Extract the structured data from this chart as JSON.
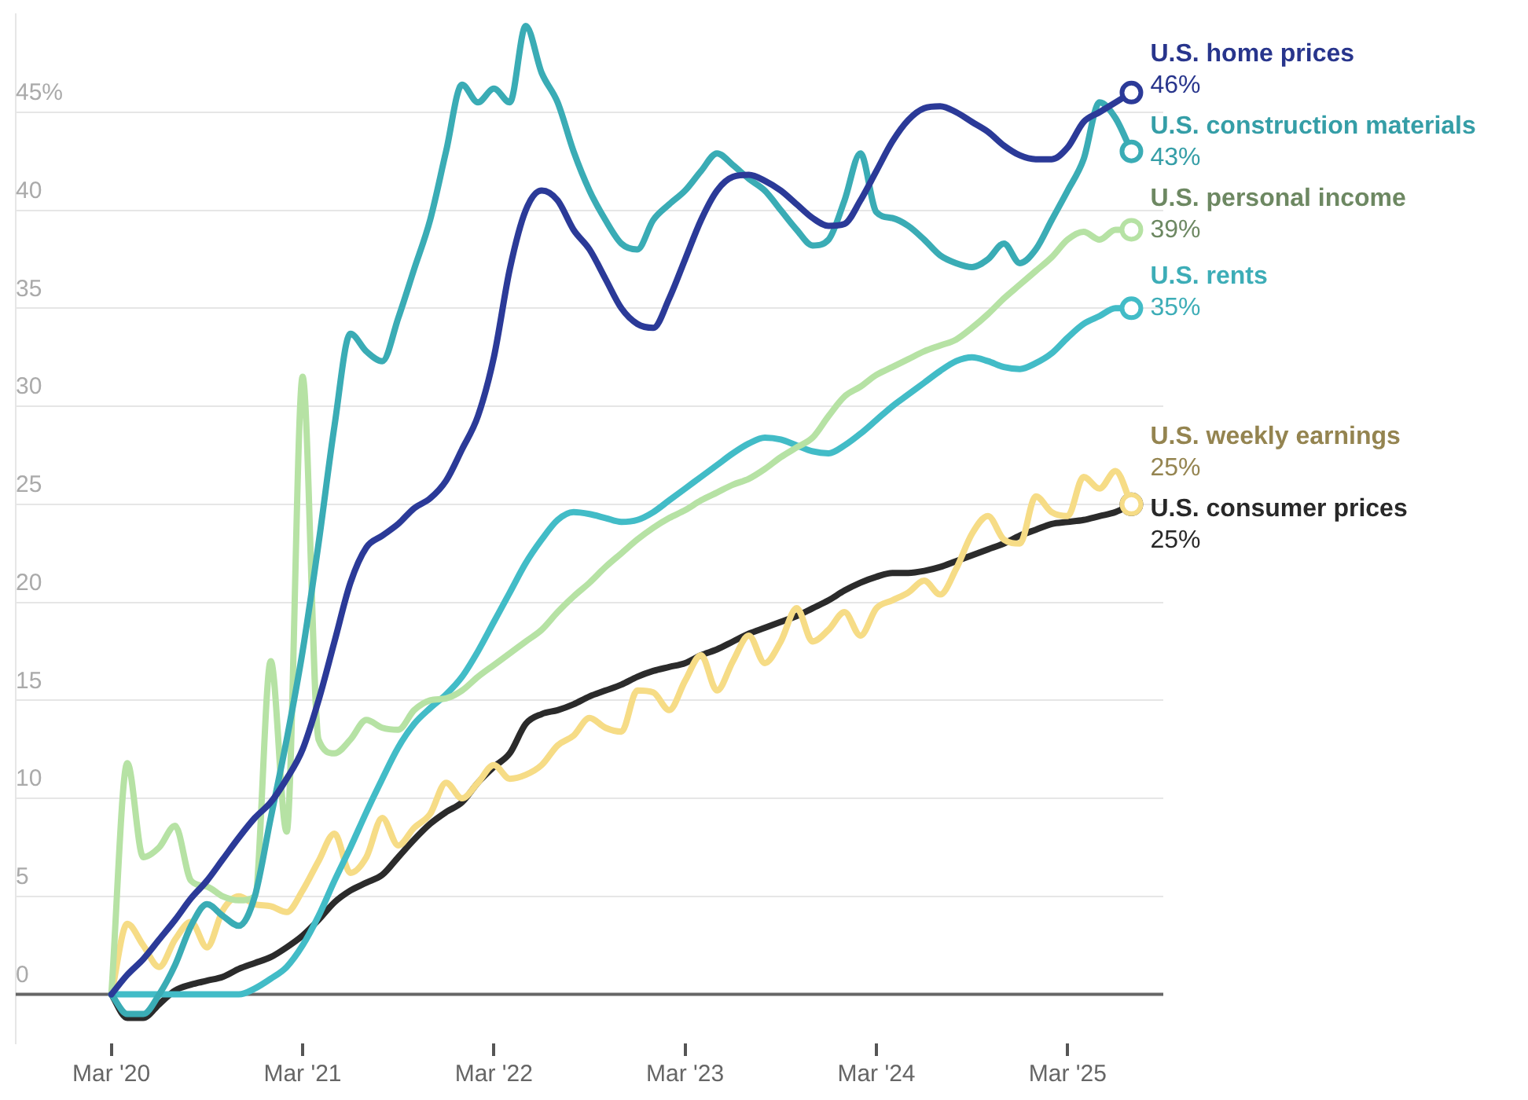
{
  "chart_data": {
    "type": "line",
    "x": [
      "2020-03",
      "2020-04",
      "2020-05",
      "2020-06",
      "2020-07",
      "2020-08",
      "2020-09",
      "2020-10",
      "2020-11",
      "2020-12",
      "2021-01",
      "2021-02",
      "2021-03",
      "2021-04",
      "2021-05",
      "2021-06",
      "2021-07",
      "2021-08",
      "2021-09",
      "2021-10",
      "2021-11",
      "2021-12",
      "2022-01",
      "2022-02",
      "2022-03",
      "2022-04",
      "2022-05",
      "2022-06",
      "2022-07",
      "2022-08",
      "2022-09",
      "2022-10",
      "2022-11",
      "2022-12",
      "2023-01",
      "2023-02",
      "2023-03",
      "2023-04",
      "2023-05",
      "2023-06",
      "2023-07",
      "2023-08",
      "2023-09",
      "2023-10",
      "2023-11",
      "2023-12",
      "2024-01",
      "2024-02",
      "2024-03",
      "2024-04",
      "2024-05",
      "2024-06",
      "2024-07",
      "2024-08",
      "2024-09",
      "2024-10",
      "2024-11",
      "2024-12",
      "2025-01",
      "2025-02",
      "2025-03",
      "2025-04",
      "2025-05",
      "2025-06",
      "2025-07"
    ],
    "series": [
      {
        "name": "U.S. home prices",
        "color": "#2b3a98",
        "values": [
          0,
          1,
          1.8,
          2.8,
          3.8,
          4.9,
          5.8,
          6.9,
          8,
          9,
          9.8,
          11,
          12.5,
          15,
          18,
          21,
          22.8,
          23.4,
          24,
          24.8,
          25.3,
          26.2,
          27.8,
          29.5,
          32.5,
          37,
          40,
          41,
          40.5,
          39,
          38,
          36.5,
          35,
          34.2,
          34,
          35.5,
          37.5,
          39.5,
          41,
          41.7,
          41.8,
          41.5,
          41,
          40.3,
          39.6,
          39.2,
          39.3,
          40.5,
          42,
          43.5,
          44.6,
          45.2,
          45.3,
          45,
          44.5,
          44,
          43.3,
          42.8,
          42.6,
          42.6,
          43.2,
          44.5,
          45,
          45.5,
          46
        ],
        "value_labels": [
          null,
          null,
          null,
          null,
          null,
          null,
          null,
          null,
          null,
          null,
          null,
          null,
          null,
          null,
          null,
          null,
          null,
          null,
          null,
          null,
          null,
          null,
          null,
          null,
          null,
          null,
          null,
          null,
          null,
          null,
          null,
          null,
          null,
          null,
          null,
          null,
          null,
          null,
          null,
          null,
          null,
          null,
          null,
          null,
          null,
          null,
          null,
          null,
          null,
          null,
          null,
          null,
          null,
          null,
          null,
          null,
          null,
          null,
          null,
          null,
          null,
          null,
          null,
          null,
          "46%"
        ]
      },
      {
        "name": "U.S. construction materials",
        "color": "#3aacb5",
        "values": [
          0,
          -1,
          -1,
          0,
          1.5,
          3.5,
          4.6,
          4,
          3.5,
          5,
          9,
          13,
          17.5,
          23,
          29,
          33.7,
          32.8,
          32.3,
          34.5,
          37,
          39.5,
          43,
          46.4,
          45.5,
          46.2,
          45.5,
          49.4,
          47,
          45.5,
          43,
          41,
          39.5,
          38.3,
          38,
          39.5,
          40.3,
          41,
          42,
          42.9,
          42.3,
          41.6,
          41,
          40,
          39,
          38.2,
          38.5,
          40.5,
          42.9,
          39.9,
          39.6,
          39.2,
          38.5,
          37.7,
          37.3,
          37.1,
          37.5,
          38.3,
          37.3,
          38,
          39.5,
          41,
          42.6,
          45.5,
          44.7,
          43
        ],
        "value_labels": [
          null,
          null,
          null,
          null,
          null,
          null,
          null,
          null,
          null,
          null,
          null,
          null,
          null,
          null,
          null,
          null,
          null,
          null,
          null,
          null,
          null,
          null,
          null,
          null,
          null,
          null,
          null,
          null,
          null,
          null,
          null,
          null,
          null,
          null,
          null,
          null,
          null,
          null,
          null,
          null,
          null,
          null,
          null,
          null,
          null,
          null,
          null,
          null,
          null,
          null,
          null,
          null,
          null,
          null,
          null,
          null,
          null,
          null,
          null,
          null,
          null,
          null,
          null,
          null,
          "43%"
        ]
      },
      {
        "name": "U.S. personal income",
        "color": "#b6e2a4",
        "values": [
          0,
          11.8,
          7,
          7.5,
          8.6,
          5.8,
          5.5,
          5,
          4.8,
          5,
          17,
          8.3,
          31.5,
          13,
          12.3,
          13,
          14,
          13.6,
          13.5,
          14.5,
          15,
          15.1,
          15.5,
          16.2,
          16.8,
          17.4,
          18,
          18.6,
          19.5,
          20.3,
          21,
          21.8,
          22.5,
          23.2,
          23.8,
          24.3,
          24.7,
          25.2,
          25.6,
          26,
          26.3,
          26.8,
          27.4,
          27.9,
          28.4,
          29.5,
          30.5,
          31,
          31.6,
          32,
          32.4,
          32.8,
          33.1,
          33.4,
          34,
          34.7,
          35.5,
          36.2,
          36.9,
          37.6,
          38.5,
          38.9,
          38.5,
          39,
          39
        ],
        "value_labels": [
          null,
          null,
          null,
          null,
          null,
          null,
          null,
          null,
          null,
          null,
          null,
          null,
          null,
          null,
          null,
          null,
          null,
          null,
          null,
          null,
          null,
          null,
          null,
          null,
          null,
          null,
          null,
          null,
          null,
          null,
          null,
          null,
          null,
          null,
          null,
          null,
          null,
          null,
          null,
          null,
          null,
          null,
          null,
          null,
          null,
          null,
          null,
          null,
          null,
          null,
          null,
          null,
          null,
          null,
          null,
          null,
          null,
          null,
          null,
          null,
          null,
          null,
          null,
          null,
          "39%"
        ]
      },
      {
        "name": "U.S. rents",
        "color": "#42bcc7",
        "values": [
          0,
          0,
          0,
          0,
          0,
          0,
          0,
          0,
          0,
          0.3,
          0.8,
          1.4,
          2.5,
          4,
          5.8,
          7.5,
          9.3,
          11,
          12.6,
          13.8,
          14.6,
          15.3,
          16.2,
          17.5,
          19,
          20.5,
          22,
          23.2,
          24.2,
          24.6,
          24.5,
          24.3,
          24.1,
          24.2,
          24.6,
          25.2,
          25.8,
          26.4,
          27,
          27.6,
          28.1,
          28.4,
          28.3,
          28,
          27.7,
          27.6,
          28,
          28.6,
          29.3,
          30,
          30.6,
          31.2,
          31.8,
          32.3,
          32.5,
          32.3,
          32,
          31.9,
          32.2,
          32.7,
          33.5,
          34.2,
          34.6,
          35,
          35
        ],
        "value_labels": [
          null,
          null,
          null,
          null,
          null,
          null,
          null,
          null,
          null,
          null,
          null,
          null,
          null,
          null,
          null,
          null,
          null,
          null,
          null,
          null,
          null,
          null,
          null,
          null,
          null,
          null,
          null,
          null,
          null,
          null,
          null,
          null,
          null,
          null,
          null,
          null,
          null,
          null,
          null,
          null,
          null,
          null,
          null,
          null,
          null,
          null,
          null,
          null,
          null,
          null,
          null,
          null,
          null,
          null,
          null,
          null,
          null,
          null,
          null,
          null,
          null,
          null,
          null,
          null,
          "35%"
        ]
      },
      {
        "name": "U.S. weekly earnings",
        "color": "#f6dc86",
        "values": [
          0,
          3.6,
          2.5,
          1.4,
          2.8,
          3.7,
          2.4,
          4.3,
          5,
          4.6,
          4.5,
          4.2,
          5.3,
          6.8,
          8.2,
          6.2,
          7,
          9,
          7.6,
          8.5,
          9.2,
          10.8,
          10,
          10.8,
          11.7,
          11,
          11.2,
          11.7,
          12.7,
          13.2,
          14.1,
          13.6,
          13.4,
          15.5,
          15.4,
          14.5,
          16,
          17.3,
          15.5,
          17,
          18.3,
          16.9,
          18,
          19.7,
          18,
          18.6,
          19.5,
          18.3,
          19.7,
          20.1,
          20.5,
          21.1,
          20.4,
          21.7,
          23.5,
          24.4,
          23.2,
          23,
          25.4,
          24.6,
          24.4,
          26.4,
          25.8,
          26.7,
          25
        ],
        "value_labels": [
          null,
          null,
          null,
          null,
          null,
          null,
          null,
          null,
          null,
          null,
          null,
          null,
          null,
          null,
          null,
          null,
          null,
          null,
          null,
          null,
          null,
          null,
          null,
          null,
          null,
          null,
          null,
          null,
          null,
          null,
          null,
          null,
          null,
          null,
          null,
          null,
          null,
          null,
          null,
          null,
          null,
          null,
          null,
          null,
          null,
          null,
          null,
          null,
          null,
          null,
          null,
          null,
          null,
          null,
          null,
          null,
          null,
          null,
          null,
          null,
          null,
          null,
          null,
          null,
          "25%"
        ]
      },
      {
        "name": "U.S. consumer prices",
        "color": "#2b2b2b",
        "values": [
          0,
          -1.2,
          -1.2,
          -0.5,
          0.2,
          0.5,
          0.7,
          0.9,
          1.3,
          1.6,
          1.9,
          2.4,
          3,
          3.8,
          4.7,
          5.3,
          5.7,
          6.1,
          7,
          7.9,
          8.7,
          9.3,
          9.8,
          10.8,
          11.6,
          12.3,
          13.8,
          14.3,
          14.5,
          14.8,
          15.2,
          15.5,
          15.8,
          16.2,
          16.5,
          16.7,
          16.9,
          17.3,
          17.6,
          18,
          18.4,
          18.7,
          19,
          19.3,
          19.7,
          20.1,
          20.6,
          21,
          21.3,
          21.5,
          21.5,
          21.6,
          21.8,
          22.1,
          22.4,
          22.7,
          23,
          23.4,
          23.7,
          24,
          24.1,
          24.2,
          24.4,
          24.6,
          25
        ],
        "value_labels": [
          null,
          null,
          null,
          null,
          null,
          null,
          null,
          null,
          null,
          null,
          null,
          null,
          null,
          null,
          null,
          null,
          null,
          null,
          null,
          null,
          null,
          null,
          null,
          null,
          null,
          null,
          null,
          null,
          null,
          null,
          null,
          null,
          null,
          null,
          null,
          null,
          null,
          null,
          null,
          null,
          null,
          null,
          null,
          null,
          null,
          null,
          null,
          null,
          null,
          null,
          null,
          null,
          null,
          null,
          null,
          null,
          null,
          null,
          null,
          null,
          null,
          null,
          null,
          null,
          "25%"
        ]
      }
    ],
    "xlim": [
      "2019-09",
      "2025-09"
    ],
    "xticks": [
      {
        "value": "2020-03",
        "label": "Mar '20"
      },
      {
        "value": "2021-03",
        "label": "Mar '21"
      },
      {
        "value": "2022-03",
        "label": "Mar '22"
      },
      {
        "value": "2023-03",
        "label": "Mar '23"
      },
      {
        "value": "2024-03",
        "label": "Mar '24"
      },
      {
        "value": "2025-03",
        "label": "Mar '25"
      }
    ],
    "ylim": [
      -2.5,
      50
    ],
    "yticks": [
      0,
      5,
      10,
      15,
      20,
      25,
      30,
      35,
      40,
      {
        "value": 45,
        "label": "45%"
      }
    ],
    "ref_lines": [
      {
        "axis": "y",
        "value": 0,
        "color": "#666666"
      }
    ],
    "grid": "y",
    "legend": false
  }
}
